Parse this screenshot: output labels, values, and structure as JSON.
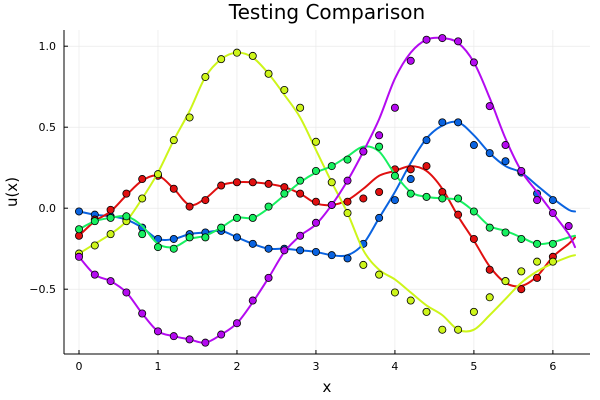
{
  "chart_data": {
    "type": "line",
    "title": "Testing Comparison",
    "xlabel": "x",
    "ylabel": "u(x)",
    "xlim": [
      -0.19,
      6.47
    ],
    "ylim": [
      -0.9,
      1.1
    ],
    "xticks": [
      0,
      1,
      2,
      3,
      4,
      5,
      6
    ],
    "xtick_labels": [
      "0",
      "1",
      "2",
      "3",
      "4",
      "5",
      "6"
    ],
    "yticks": [
      -0.5,
      0.0,
      0.5,
      1.0
    ],
    "ytick_labels": [
      "−0.5",
      "0.0",
      "0.5",
      "1.0"
    ],
    "grid": true,
    "legend": "none",
    "series": [
      {
        "name": "blue",
        "color": "#0a63e0",
        "line_x": [
          0,
          0.2,
          0.4,
          0.6,
          0.8,
          1.0,
          1.2,
          1.4,
          1.6,
          1.8,
          2.0,
          2.2,
          2.4,
          2.6,
          2.8,
          3.0,
          3.2,
          3.4,
          3.6,
          3.8,
          4.0,
          4.2,
          4.4,
          4.6,
          4.8,
          5.0,
          5.2,
          5.4,
          5.6,
          5.8,
          6.0,
          6.2,
          6.28
        ],
        "line_y": [
          -0.02,
          -0.04,
          -0.05,
          -0.07,
          -0.12,
          -0.19,
          -0.19,
          -0.16,
          -0.15,
          -0.14,
          -0.18,
          -0.22,
          -0.25,
          -0.25,
          -0.26,
          -0.27,
          -0.29,
          -0.29,
          -0.22,
          -0.06,
          0.1,
          0.28,
          0.43,
          0.51,
          0.53,
          0.45,
          0.34,
          0.26,
          0.22,
          0.14,
          0.06,
          -0.01,
          -0.02
        ],
        "points_x": [
          0,
          0.2,
          0.4,
          0.6,
          0.8,
          1.0,
          1.2,
          1.4,
          1.6,
          1.8,
          2.0,
          2.2,
          2.4,
          2.6,
          2.8,
          3.0,
          3.2,
          3.4,
          3.6,
          3.8,
          4.0,
          4.2,
          4.4,
          4.6,
          4.8,
          5.0,
          5.2,
          5.4,
          5.6,
          5.8,
          6.0
        ],
        "points_y": [
          -0.02,
          -0.04,
          -0.05,
          -0.07,
          -0.12,
          -0.19,
          -0.19,
          -0.16,
          -0.15,
          -0.14,
          -0.18,
          -0.22,
          -0.25,
          -0.25,
          -0.26,
          -0.27,
          -0.29,
          -0.31,
          -0.22,
          -0.06,
          0.05,
          0.18,
          0.42,
          0.53,
          0.53,
          0.39,
          0.34,
          0.29,
          0.22,
          0.09,
          0.05
        ]
      },
      {
        "name": "red",
        "color": "#e01010",
        "line_x": [
          0,
          0.2,
          0.4,
          0.6,
          0.8,
          1.0,
          1.2,
          1.4,
          1.6,
          1.8,
          2.0,
          2.2,
          2.4,
          2.6,
          2.8,
          3.0,
          3.2,
          3.4,
          3.6,
          3.8,
          4.0,
          4.2,
          4.4,
          4.6,
          4.8,
          5.0,
          5.2,
          5.4,
          5.6,
          5.8,
          6.0,
          6.2,
          6.28
        ],
        "line_y": [
          -0.17,
          -0.08,
          -0.02,
          0.08,
          0.17,
          0.2,
          0.12,
          0.02,
          0.06,
          0.14,
          0.16,
          0.16,
          0.15,
          0.13,
          0.09,
          0.03,
          0.02,
          0.05,
          0.12,
          0.2,
          0.23,
          0.26,
          0.23,
          0.12,
          -0.05,
          -0.2,
          -0.36,
          -0.46,
          -0.48,
          -0.42,
          -0.3,
          -0.22,
          -0.18
        ],
        "points_x": [
          0,
          0.2,
          0.4,
          0.6,
          0.8,
          1.0,
          1.2,
          1.4,
          1.6,
          1.8,
          2.0,
          2.2,
          2.4,
          2.6,
          2.8,
          3.0,
          3.2,
          3.4,
          3.6,
          3.8,
          4.0,
          4.2,
          4.4,
          4.6,
          4.8,
          5.0,
          5.2,
          5.4,
          5.6,
          5.8,
          6.0
        ],
        "points_y": [
          -0.17,
          -0.07,
          -0.01,
          0.09,
          0.18,
          0.2,
          0.12,
          0.01,
          0.05,
          0.14,
          0.16,
          0.16,
          0.15,
          0.13,
          0.09,
          0.04,
          0.02,
          0.04,
          0.06,
          0.1,
          0.24,
          0.24,
          0.26,
          0.1,
          -0.04,
          -0.19,
          -0.38,
          -0.45,
          -0.5,
          -0.43,
          -0.3
        ]
      },
      {
        "name": "yellow-green",
        "color": "#cdf51a",
        "line_x": [
          0,
          0.2,
          0.4,
          0.6,
          0.8,
          1.0,
          1.2,
          1.4,
          1.6,
          1.8,
          2.0,
          2.2,
          2.4,
          2.6,
          2.8,
          3.0,
          3.2,
          3.4,
          3.6,
          3.8,
          4.0,
          4.2,
          4.4,
          4.6,
          4.8,
          5.0,
          5.2,
          5.4,
          5.6,
          5.8,
          6.0,
          6.2,
          6.28
        ],
        "line_y": [
          -0.28,
          -0.22,
          -0.16,
          -0.08,
          0.06,
          0.22,
          0.42,
          0.6,
          0.81,
          0.92,
          0.96,
          0.93,
          0.83,
          0.7,
          0.56,
          0.36,
          0.16,
          -0.03,
          -0.26,
          -0.38,
          -0.44,
          -0.52,
          -0.6,
          -0.66,
          -0.75,
          -0.75,
          -0.66,
          -0.56,
          -0.46,
          -0.39,
          -0.34,
          -0.3,
          -0.29
        ],
        "points_x": [
          0,
          0.2,
          0.4,
          0.6,
          0.8,
          1.0,
          1.2,
          1.4,
          1.6,
          1.8,
          2.0,
          2.2,
          2.4,
          2.6,
          2.8,
          3.0,
          3.2,
          3.4,
          3.6,
          3.8,
          4.0,
          4.2,
          4.4,
          4.6,
          4.8,
          5.0,
          5.2,
          5.4,
          5.6,
          5.8,
          6.0
        ],
        "points_y": [
          -0.28,
          -0.23,
          -0.16,
          -0.08,
          0.06,
          0.21,
          0.42,
          0.56,
          0.81,
          0.92,
          0.96,
          0.94,
          0.83,
          0.73,
          0.62,
          0.41,
          0.16,
          -0.03,
          -0.35,
          -0.41,
          -0.52,
          -0.57,
          -0.64,
          -0.75,
          -0.75,
          -0.64,
          -0.55,
          -0.45,
          -0.39,
          -0.33,
          -0.33
        ]
      },
      {
        "name": "green",
        "color": "#17f060",
        "line_x": [
          0,
          0.2,
          0.4,
          0.6,
          0.8,
          1.0,
          1.2,
          1.4,
          1.6,
          1.8,
          2.0,
          2.2,
          2.4,
          2.6,
          2.8,
          3.0,
          3.2,
          3.4,
          3.6,
          3.8,
          4.0,
          4.2,
          4.4,
          4.6,
          4.8,
          5.0,
          5.2,
          5.4,
          5.6,
          5.8,
          6.0,
          6.2,
          6.28
        ],
        "line_y": [
          -0.13,
          -0.08,
          -0.06,
          -0.05,
          -0.11,
          -0.22,
          -0.24,
          -0.19,
          -0.17,
          -0.12,
          -0.06,
          -0.06,
          0.0,
          0.08,
          0.16,
          0.22,
          0.26,
          0.32,
          0.38,
          0.35,
          0.21,
          0.1,
          0.07,
          0.06,
          0.05,
          -0.02,
          -0.11,
          -0.14,
          -0.18,
          -0.22,
          -0.21,
          -0.18,
          -0.17
        ],
        "points_x": [
          0,
          0.2,
          0.4,
          0.6,
          0.8,
          1.0,
          1.2,
          1.4,
          1.6,
          1.8,
          2.0,
          2.2,
          2.4,
          2.6,
          2.8,
          3.0,
          3.2,
          3.4,
          3.6,
          3.8,
          4.0,
          4.2,
          4.4,
          4.6,
          4.8,
          5.0,
          5.2,
          5.4,
          5.6,
          5.8,
          6.0
        ],
        "points_y": [
          -0.13,
          -0.08,
          -0.06,
          -0.05,
          -0.16,
          -0.24,
          -0.25,
          -0.18,
          -0.18,
          -0.12,
          -0.06,
          -0.06,
          0.01,
          0.09,
          0.17,
          0.23,
          0.26,
          0.3,
          0.35,
          0.38,
          0.2,
          0.09,
          0.07,
          0.06,
          0.06,
          -0.02,
          -0.12,
          -0.15,
          -0.19,
          -0.22,
          -0.22
        ]
      },
      {
        "name": "magenta",
        "color": "#b40af0",
        "line_x": [
          0,
          0.2,
          0.4,
          0.6,
          0.8,
          1.0,
          1.2,
          1.4,
          1.6,
          1.8,
          2.0,
          2.2,
          2.4,
          2.6,
          2.8,
          3.0,
          3.2,
          3.4,
          3.6,
          3.8,
          4.0,
          4.2,
          4.4,
          4.6,
          4.8,
          5.0,
          5.2,
          5.4,
          5.6,
          5.8,
          6.0,
          6.2,
          6.28
        ],
        "line_y": [
          -0.3,
          -0.41,
          -0.45,
          -0.52,
          -0.65,
          -0.76,
          -0.79,
          -0.81,
          -0.83,
          -0.78,
          -0.71,
          -0.58,
          -0.43,
          -0.27,
          -0.17,
          -0.1,
          0.02,
          0.17,
          0.35,
          0.55,
          0.8,
          0.96,
          1.04,
          1.05,
          1.02,
          0.9,
          0.68,
          0.43,
          0.23,
          0.1,
          -0.03,
          -0.16,
          -0.24
        ],
        "points_x": [
          0,
          0.2,
          0.4,
          0.6,
          0.8,
          1.0,
          1.2,
          1.4,
          1.6,
          1.8,
          2.0,
          2.2,
          2.4,
          2.6,
          2.8,
          3.0,
          3.2,
          3.4,
          3.6,
          3.8,
          4.0,
          4.2,
          4.4,
          4.6,
          4.8,
          5.0,
          5.2,
          5.4,
          5.6,
          5.8,
          6.0,
          6.2
        ],
        "points_y": [
          -0.3,
          -0.41,
          -0.45,
          -0.52,
          -0.65,
          -0.76,
          -0.79,
          -0.81,
          -0.83,
          -0.78,
          -0.71,
          -0.57,
          -0.43,
          -0.26,
          -0.17,
          -0.09,
          0.02,
          0.17,
          0.35,
          0.45,
          0.62,
          0.91,
          1.04,
          1.05,
          1.03,
          0.9,
          0.63,
          0.39,
          0.23,
          0.05,
          -0.03,
          -0.11
        ]
      }
    ]
  }
}
